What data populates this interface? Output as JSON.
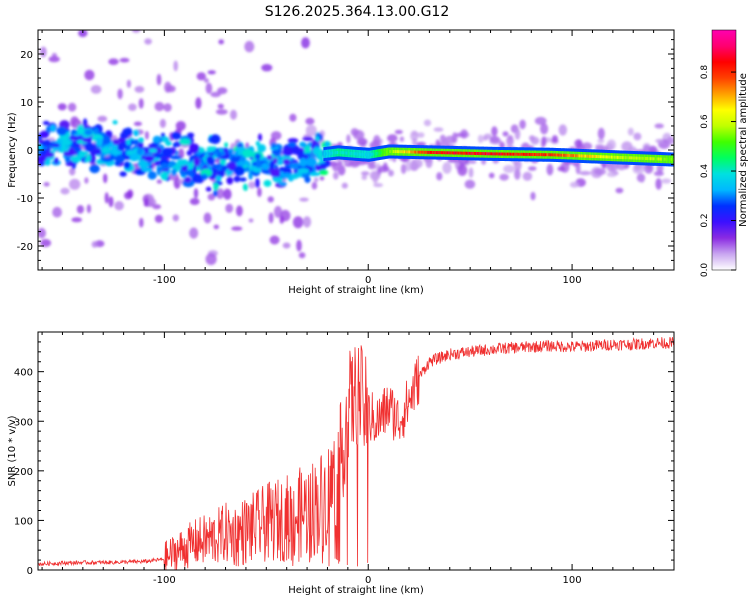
{
  "title": "S126.2025.364.13.00.G12",
  "colors": {
    "snr_line": "#f03030",
    "axis": "#000000",
    "background": "#ffffff"
  },
  "chart_data": [
    {
      "type": "heatmap",
      "name": "spectrogram",
      "xlabel": "Height of straight line (km)",
      "ylabel": "Frequency (Hz)",
      "xlim": [
        -162,
        150
      ],
      "ylim": [
        -25,
        25
      ],
      "xticks": [
        -100,
        0,
        100
      ],
      "xtick_labels": [
        "-100",
        "0",
        "100"
      ],
      "yticks": [
        -20,
        -10,
        0,
        10,
        20
      ],
      "ytick_labels": [
        "-20",
        "-10",
        "0",
        "10",
        "20"
      ],
      "colorbar": {
        "label": "Normalized spectral amplitude",
        "range": [
          0,
          0.97
        ],
        "ticks": [
          0.0,
          0.2,
          0.4,
          0.6,
          0.8
        ],
        "tick_labels": [
          "0.0",
          "0.2",
          "0.4",
          "0.6",
          "0.8"
        ],
        "colormap": [
          "#ffffff",
          "#c9a6f0",
          "#8a2be2",
          "#3c10ff",
          "#0030ff",
          "#00b8ff",
          "#00e0e0",
          "#00ff60",
          "#40ff00",
          "#c0ff00",
          "#ffff00",
          "#ffa000",
          "#ff4000",
          "#ff0000",
          "#ff0070",
          "#ff00b0"
        ]
      },
      "description_points": [
        {
          "x": -160,
          "freq": 1.0,
          "amp": 0.3
        },
        {
          "x": -140,
          "freq": 1.5,
          "amp": 0.33
        },
        {
          "x": -120,
          "freq": 0.5,
          "amp": 0.3
        },
        {
          "x": -100,
          "freq": -2.0,
          "amp": 0.32
        },
        {
          "x": -80,
          "freq": -2.5,
          "amp": 0.34
        },
        {
          "x": -60,
          "freq": -2.0,
          "amp": 0.35
        },
        {
          "x": -40,
          "freq": -3.0,
          "amp": 0.3
        },
        {
          "x": -25,
          "freq": -1.0,
          "amp": 0.35
        },
        {
          "x": -15,
          "freq": -0.5,
          "amp": 0.45
        },
        {
          "x": 0,
          "freq": -1.0,
          "amp": 0.4
        },
        {
          "x": 10,
          "freq": -0.3,
          "amp": 0.6
        },
        {
          "x": 30,
          "freq": -0.5,
          "amp": 0.9
        },
        {
          "x": 60,
          "freq": -0.8,
          "amp": 0.92
        },
        {
          "x": 90,
          "freq": -1.0,
          "amp": 0.85
        },
        {
          "x": 120,
          "freq": -1.5,
          "amp": 0.65
        },
        {
          "x": 150,
          "freq": -2.0,
          "amp": 0.6
        }
      ]
    },
    {
      "type": "line",
      "name": "snr",
      "xlabel": "Height of straight line (km)",
      "ylabel": "SNR (10 * v/v)",
      "xlim": [
        -162,
        150
      ],
      "ylim": [
        0,
        480
      ],
      "xticks": [
        -100,
        0,
        100
      ],
      "xtick_labels": [
        "-100",
        "0",
        "100"
      ],
      "yticks": [
        0,
        100,
        200,
        300,
        400
      ],
      "ytick_labels": [
        "0",
        "100",
        "200",
        "300",
        "400"
      ],
      "series": [
        {
          "name": "SNR",
          "x": [
            -162,
            -150,
            -140,
            -130,
            -120,
            -110,
            -100,
            -95,
            -90,
            -85,
            -80,
            -75,
            -70,
            -65,
            -60,
            -55,
            -50,
            -45,
            -40,
            -35,
            -30,
            -25,
            -20,
            -15,
            -12,
            -10,
            -8,
            -5,
            0,
            5,
            10,
            15,
            20,
            25,
            30,
            40,
            50,
            60,
            70,
            80,
            90,
            100,
            110,
            120,
            130,
            140,
            150
          ],
          "y": [
            12,
            14,
            15,
            15,
            16,
            17,
            22,
            35,
            45,
            55,
            60,
            65,
            75,
            70,
            80,
            85,
            95,
            100,
            105,
            110,
            120,
            130,
            150,
            200,
            260,
            330,
            340,
            360,
            310,
            300,
            330,
            300,
            340,
            390,
            420,
            435,
            440,
            445,
            448,
            450,
            452,
            450,
            452,
            455,
            455,
            458,
            458
          ]
        }
      ]
    }
  ]
}
